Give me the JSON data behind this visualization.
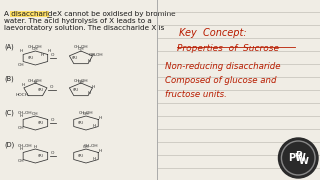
{
  "left_bg": "#f0ede5",
  "right_bg": "#e8e6df",
  "question_text_line1": "A disaccharide X cannot be oxidised by bromine",
  "question_text_line2": "water. The acid hydrolysis of X leads to a",
  "question_text_line3": "laevorotatory solution. The disaccharide X is",
  "highlight_words": "disaccharide X",
  "highlight_color": "#ffe066",
  "text_color_black": "#1a1a1a",
  "text_color_red": "#b81c00",
  "structure_color": "#333333",
  "key_title": "Key Concept:",
  "key_subtitle": "Properties of Sucrose",
  "key_body1": "Non-reducing disaccharide",
  "key_body2": "Composed of glucose and",
  "key_body3": "fructose units.",
  "pw_bg": "#2a2a2a",
  "pw_ring": "#888888",
  "line_color": "#b8b5ac",
  "options": [
    "(A)",
    "(B)",
    "(C)",
    "(D)"
  ],
  "font_size_q": 5.2,
  "font_size_opt": 4.8,
  "font_size_struct": 3.2,
  "font_size_key_title": 7.0,
  "font_size_key_body": 6.2
}
